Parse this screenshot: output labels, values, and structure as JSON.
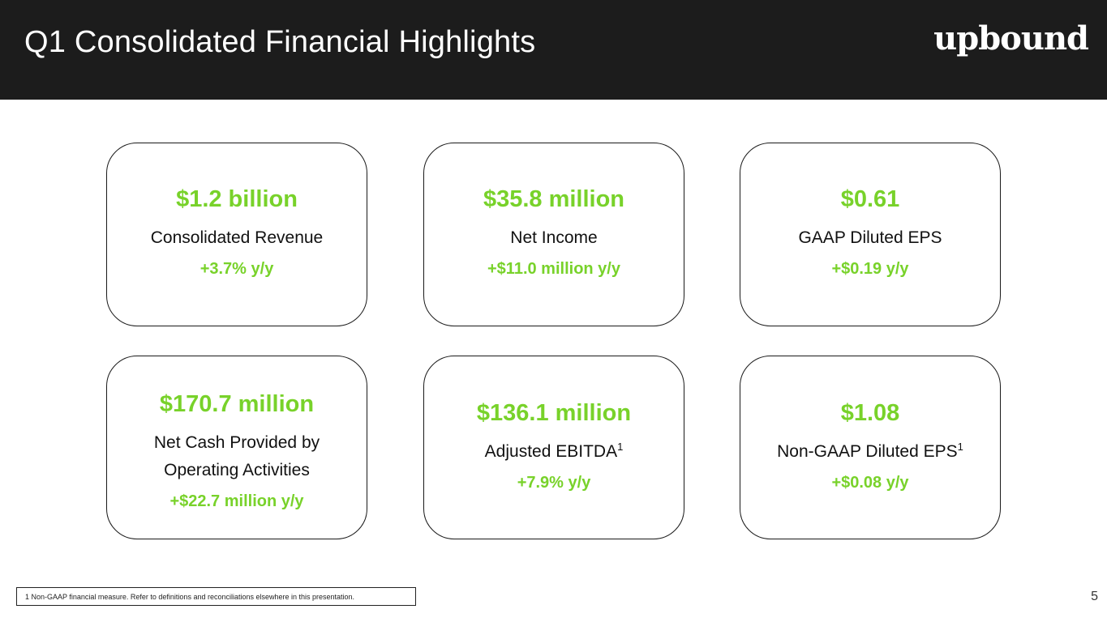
{
  "header": {
    "title": "Q1 Consolidated Financial Highlights",
    "logo_text": "upbound"
  },
  "cards": [
    {
      "value": "$1.2 billion",
      "label": "Consolidated Revenue",
      "label_line2": "",
      "label_sup": "",
      "change": "+3.7% y/y"
    },
    {
      "value": "$35.8 million",
      "label": "Net Income",
      "label_line2": "",
      "label_sup": "",
      "change": "+$11.0 million y/y"
    },
    {
      "value": "$0.61",
      "label": "GAAP Diluted EPS",
      "label_line2": "",
      "label_sup": "",
      "change": "+$0.19 y/y"
    },
    {
      "value": "$170.7 million",
      "label": "Net Cash Provided by",
      "label_line2": "Operating Activities",
      "label_sup": "",
      "change": "+$22.7 million y/y"
    },
    {
      "value": "$136.1 million",
      "label": "Adjusted EBITDA",
      "label_line2": "",
      "label_sup": "1",
      "change": "+7.9% y/y"
    },
    {
      "value": "$1.08",
      "label": "Non-GAAP Diluted EPS",
      "label_line2": "",
      "label_sup": "1",
      "change": "+$0.08 y/y"
    }
  ],
  "footnote": "1 Non-GAAP financial measure. Refer to definitions and reconciliations elsewhere in this presentation.",
  "page_number": "5",
  "colors": {
    "header_bg": "#1c1c1c",
    "accent_green": "#78d22a",
    "text": "#111111"
  }
}
